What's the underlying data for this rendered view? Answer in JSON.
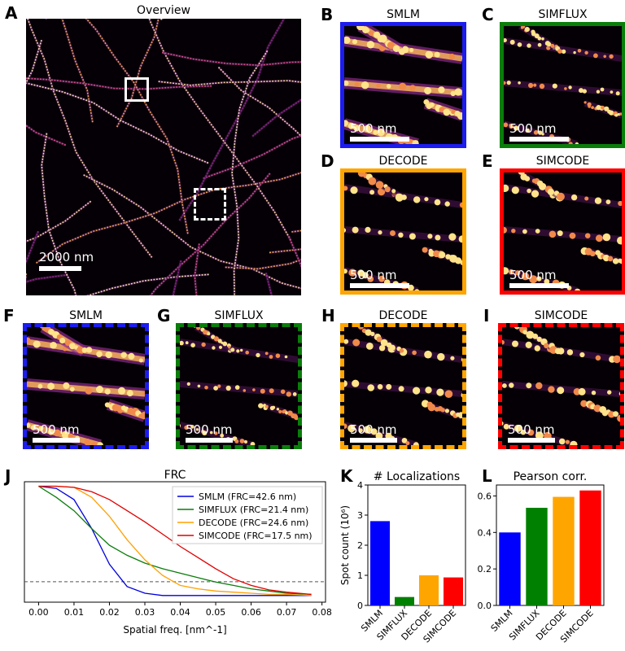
{
  "panels": {
    "A": {
      "letter": "A",
      "title": "Overview",
      "scalebar": "2000 nm"
    },
    "B": {
      "letter": "B",
      "title": "SMLM",
      "scalebar": "500 nm",
      "color": "#1c1cf0"
    },
    "C": {
      "letter": "C",
      "title": "SIMFLUX",
      "scalebar": "500 nm",
      "color": "#0a7d0a"
    },
    "D": {
      "letter": "D",
      "title": "DECODE",
      "scalebar": "500 nm",
      "color": "#ffa500"
    },
    "E": {
      "letter": "E",
      "title": "SIMCODE",
      "scalebar": "500 nm",
      "color": "#ff0000"
    },
    "F": {
      "letter": "F",
      "title": "SMLM",
      "scalebar": "500 nm",
      "color": "#1c1cf0"
    },
    "G": {
      "letter": "G",
      "title": "SIMFLUX",
      "scalebar": "500 nm",
      "color": "#0a7d0a"
    },
    "H": {
      "letter": "H",
      "title": "DECODE",
      "scalebar": "500 nm",
      "color": "#ffa500"
    },
    "I": {
      "letter": "I",
      "title": "SIMCODE",
      "scalebar": "500 nm",
      "color": "#ff0000"
    },
    "J": {
      "letter": "J"
    },
    "K": {
      "letter": "K"
    },
    "L": {
      "letter": "L"
    }
  },
  "chart_data": [
    {
      "type": "line",
      "title": "FRC",
      "xlabel": "Spatial freq. [nm^-1]",
      "ylabel": "",
      "xlim": [
        -0.004,
        0.081
      ],
      "ylim": [
        -0.04,
        1.04
      ],
      "xticks": [
        "0.00",
        "0.01",
        "0.02",
        "0.03",
        "0.04",
        "0.05",
        "0.06",
        "0.07",
        "0.08"
      ],
      "threshold": 0.143,
      "legend_position": "top-right",
      "x": [
        0.0,
        0.005,
        0.01,
        0.015,
        0.02,
        0.025,
        0.03,
        0.035,
        0.04,
        0.045,
        0.05,
        0.055,
        0.06,
        0.065,
        0.07,
        0.077
      ],
      "series": [
        {
          "name": "SMLM (FRC=42.6 nm)",
          "color": "#0000dd",
          "values": [
            1.0,
            0.98,
            0.88,
            0.62,
            0.3,
            0.1,
            0.04,
            0.02,
            0.02,
            0.02,
            0.02,
            0.02,
            0.02,
            0.02,
            0.02,
            0.02
          ]
        },
        {
          "name": "SIMFLUX (FRC=21.4 nm)",
          "color": "#0a7d0a",
          "values": [
            1.0,
            0.9,
            0.78,
            0.62,
            0.47,
            0.38,
            0.31,
            0.26,
            0.22,
            0.18,
            0.14,
            0.11,
            0.08,
            0.06,
            0.04,
            0.03
          ]
        },
        {
          "name": "DECODE (FRC=24.6 nm)",
          "color": "#ffa000",
          "values": [
            1.0,
            1.0,
            0.99,
            0.9,
            0.73,
            0.52,
            0.34,
            0.2,
            0.11,
            0.08,
            0.06,
            0.05,
            0.04,
            0.03,
            0.03,
            0.02
          ]
        },
        {
          "name": "SIMCODE (FRC=17.5 nm)",
          "color": "#e00000",
          "values": [
            1.0,
            1.0,
            0.99,
            0.95,
            0.88,
            0.78,
            0.68,
            0.57,
            0.46,
            0.36,
            0.26,
            0.17,
            0.11,
            0.07,
            0.05,
            0.03
          ]
        }
      ]
    },
    {
      "type": "bar",
      "title": "# Localizations",
      "ylabel": "Spot count (10⁶)",
      "ylim": [
        0,
        4
      ],
      "yticks": [
        "0",
        "1",
        "2",
        "3",
        "4"
      ],
      "categories": [
        "SMLM",
        "SIMFLUX",
        "DECODE",
        "SIMCODE"
      ],
      "values": [
        2.8,
        0.28,
        1.0,
        0.93
      ],
      "colors": [
        "#0000ff",
        "#008000",
        "#ffa500",
        "#ff0000"
      ]
    },
    {
      "type": "bar",
      "title": "Pearson corr.",
      "ylabel": "",
      "ylim": [
        0,
        0.66
      ],
      "yticks": [
        "0.0",
        "0.2",
        "0.4",
        "0.6"
      ],
      "categories": [
        "SMLM",
        "SIMFLUX",
        "DECODE",
        "SIMCODE"
      ],
      "values": [
        0.4,
        0.535,
        0.595,
        0.63
      ],
      "colors": [
        "#0000ff",
        "#008000",
        "#ffa500",
        "#ff0000"
      ]
    }
  ]
}
